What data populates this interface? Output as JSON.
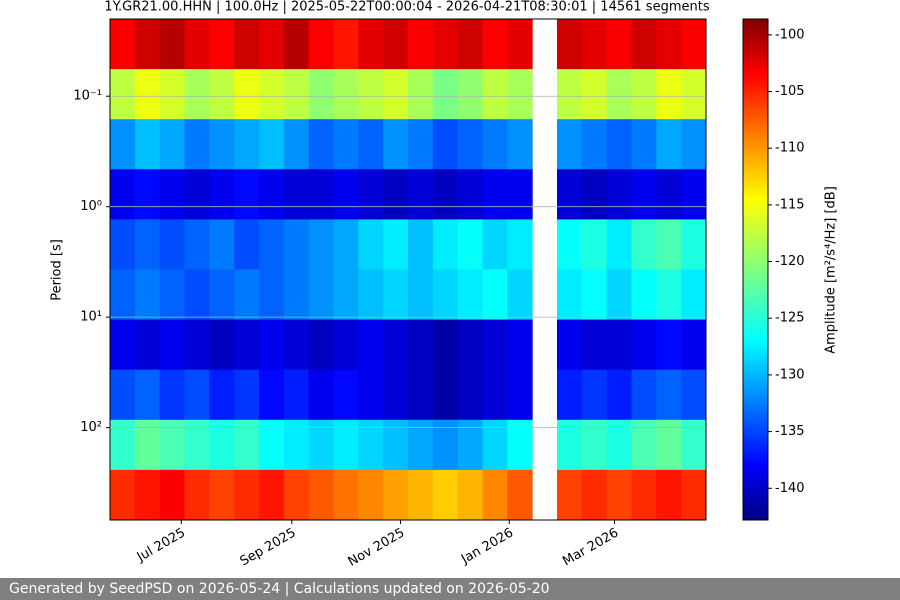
{
  "chart_data": {
    "type": "spectrogram",
    "title": "1Y.GR21.00.HHN | 100.0Hz | 2025-05-22T00:00:04 - 2026-04-21T08:30:01 | 14561 segments",
    "y_label": "Period [s]",
    "colorbar_label": "Amplitude [m²/s⁴/Hz] [dB]",
    "xlim": [
      "2025-05-22T00:00:04",
      "2026-04-21T08:30:01"
    ],
    "xticks": [
      {
        "value": "2025-07-01",
        "label": "Jul 2025"
      },
      {
        "value": "2025-09-01",
        "label": "Sep 2025"
      },
      {
        "value": "2025-11-01",
        "label": "Nov 2025"
      },
      {
        "value": "2026-01-01",
        "label": "Jan 2026"
      },
      {
        "value": "2026-03-01",
        "label": "Mar 2026"
      }
    ],
    "ylim": [
      0.02,
      686
    ],
    "y_inverted": true,
    "log_y": true,
    "yticks": [
      {
        "value": 0.1,
        "label": "10⁻¹"
      },
      {
        "value": 1,
        "label": "10⁰"
      },
      {
        "value": 10,
        "label": "10¹"
      },
      {
        "value": 100,
        "label": "10²"
      }
    ],
    "grid": "y",
    "colormap": "jet",
    "clim": [
      -142.8,
      -98.6
    ],
    "colorbar_ticks": [
      -100,
      -105,
      -110,
      -115,
      -120,
      -125,
      -130,
      -135,
      -140
    ],
    "z": [
      [
        -104,
        -102,
        -101,
        -103,
        -104,
        -102,
        -103,
        -101,
        -104,
        -105,
        -103,
        -102,
        -104,
        -103,
        -102,
        -104,
        -103,
        null,
        -102,
        -103,
        -104,
        -102,
        -103,
        -104
      ],
      [
        -118,
        -116,
        -117,
        -119,
        -118,
        -116,
        -117,
        -118,
        -120,
        -119,
        -118,
        -117,
        -119,
        -121,
        -120,
        -118,
        -119,
        null,
        -118,
        -117,
        -119,
        -118,
        -116,
        -117
      ],
      [
        -131,
        -129,
        -130,
        -132,
        -131,
        -130,
        -129,
        -131,
        -133,
        -132,
        -133,
        -131,
        -132,
        -134,
        -133,
        -132,
        -131,
        null,
        -131,
        -132,
        -133,
        -132,
        -130,
        -131
      ],
      [
        -138,
        -137,
        -138,
        -139,
        -138,
        -137,
        -138,
        -139,
        -139,
        -138,
        -139,
        -140,
        -139,
        -140,
        -139,
        -138,
        -138,
        null,
        -139,
        -140,
        -139,
        -138,
        -139,
        -138
      ],
      [
        -134,
        -133,
        -134,
        -133,
        -132,
        -134,
        -133,
        -132,
        -131,
        -130,
        -128,
        -127,
        -129,
        -127,
        -126,
        -128,
        -127,
        null,
        -126,
        -125,
        -127,
        -124,
        -123,
        -125
      ],
      [
        -133,
        -132,
        -133,
        -134,
        -133,
        -132,
        -133,
        -132,
        -131,
        -130,
        -129,
        -128,
        -129,
        -128,
        -127,
        -126,
        -128,
        null,
        -127,
        -126,
        -128,
        -126,
        -125,
        -127
      ],
      [
        -138,
        -139,
        -138,
        -139,
        -140,
        -139,
        -138,
        -139,
        -140,
        -139,
        -138,
        -139,
        -140,
        -141,
        -140,
        -139,
        -138,
        null,
        -138,
        -139,
        -139,
        -138,
        -137,
        -138
      ],
      [
        -134,
        -133,
        -135,
        -134,
        -136,
        -135,
        -137,
        -136,
        -138,
        -137,
        -138,
        -139,
        -140,
        -141,
        -140,
        -139,
        -138,
        null,
        -136,
        -135,
        -136,
        -134,
        -133,
        -134
      ],
      [
        -124,
        -122,
        -123,
        -124,
        -125,
        -124,
        -126,
        -127,
        -128,
        -127,
        -128,
        -129,
        -130,
        -131,
        -130,
        -128,
        -126,
        null,
        -125,
        -124,
        -125,
        -123,
        -122,
        -124
      ],
      [
        -106,
        -105,
        -104,
        -106,
        -107,
        -106,
        -105,
        -107,
        -108,
        -109,
        -110,
        -111,
        -112,
        -113,
        -112,
        -110,
        -108,
        null,
        -107,
        -106,
        -107,
        -106,
        -105,
        -106
      ]
    ]
  },
  "footer": "Generated by SeedPSD on 2026-05-24 | Calculations updated on 2026-05-20"
}
